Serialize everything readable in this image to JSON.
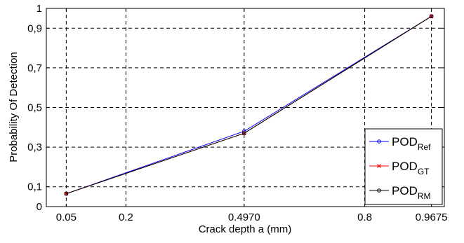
{
  "chart_data": {
    "type": "line",
    "title": "",
    "xlabel": "Crack depth a (mm)",
    "ylabel": "Probability Of Detection",
    "xlim": [
      0.0,
      1.0
    ],
    "ylim": [
      0,
      1
    ],
    "x_ticks": [
      0.05,
      0.2,
      0.497,
      0.8,
      0.9675
    ],
    "x_tick_labels": [
      "0.05",
      "0.2",
      "0.4970",
      "0.8",
      "0.9675"
    ],
    "y_ticks": [
      0,
      0.1,
      0.3,
      0.5,
      0.7,
      0.9,
      1
    ],
    "y_tick_labels": [
      "0",
      "0,1",
      "0,3",
      "0,5",
      "0,7",
      "0,9",
      "1"
    ],
    "grid": true,
    "legend_position": "bottom-right",
    "x": [
      0.05,
      0.497,
      0.9675
    ],
    "series": [
      {
        "name": "POD",
        "subscript": "Ref",
        "color": "#0000ff",
        "marker": "circle",
        "values": [
          0.065,
          0.38,
          0.96
        ]
      },
      {
        "name": "POD",
        "subscript": "GT",
        "color": "#ff0000",
        "marker": "x",
        "values": [
          0.065,
          0.37,
          0.96
        ]
      },
      {
        "name": "POD",
        "subscript": "RM",
        "color": "#000000",
        "marker": "circle",
        "values": [
          0.065,
          0.37,
          0.96
        ]
      }
    ]
  }
}
